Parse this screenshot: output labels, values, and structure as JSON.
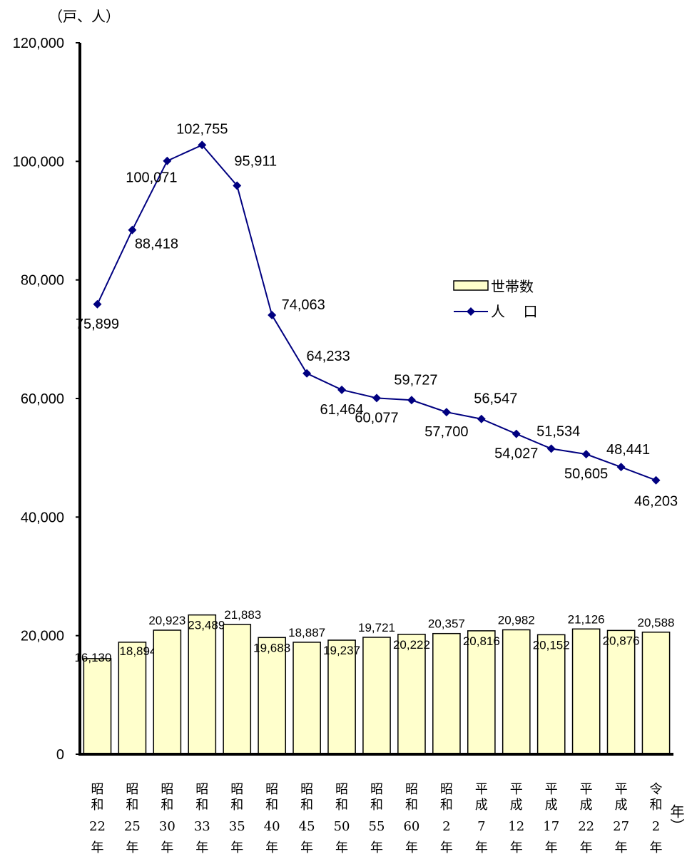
{
  "chart_data": {
    "type": "bar",
    "yunit": "（戸、人）",
    "xunit": "年）",
    "ylim": [
      0,
      120000
    ],
    "yticks": [
      "0",
      "20,000",
      "40,000",
      "60,000",
      "80,000",
      "100,000",
      "120,000"
    ],
    "ytick_values": [
      0,
      20000,
      40000,
      60000,
      80000,
      100000,
      120000
    ],
    "categories": [
      {
        "era": "昭和",
        "year": "22年"
      },
      {
        "era": "昭和",
        "year": "25年"
      },
      {
        "era": "昭和",
        "year": "30年"
      },
      {
        "era": "昭和",
        "year": "33年"
      },
      {
        "era": "昭和",
        "year": "35年"
      },
      {
        "era": "昭和",
        "year": "40年"
      },
      {
        "era": "昭和",
        "year": "45年"
      },
      {
        "era": "昭和",
        "year": "50年"
      },
      {
        "era": "昭和",
        "year": "55年"
      },
      {
        "era": "昭和",
        "year": "60年"
      },
      {
        "era": "昭和",
        "year": "2年"
      },
      {
        "era": "平成",
        "year": "7年"
      },
      {
        "era": "平成",
        "year": "12年"
      },
      {
        "era": "平成",
        "year": "17年"
      },
      {
        "era": "平成",
        "year": "22年"
      },
      {
        "era": "平成",
        "year": "27年"
      },
      {
        "era": "令和",
        "year": "2年"
      }
    ],
    "series": [
      {
        "name": "世帯数",
        "type": "bar",
        "color": "#FFFFCC",
        "values": [
          16130,
          18894,
          20923,
          23489,
          21883,
          19683,
          18887,
          19237,
          19721,
          20222,
          20357,
          20816,
          20982,
          20152,
          21126,
          20876,
          20588
        ],
        "labels": [
          "16,130",
          "18,894",
          "20,923",
          "23,489",
          "21,883",
          "19,683",
          "18,887",
          "19,237",
          "19,721",
          "20,222",
          "20,357",
          "20,816",
          "20,982",
          "20,152",
          "21,126",
          "20,876",
          "20,588"
        ]
      },
      {
        "name": "人　 口",
        "type": "line",
        "color": "#000080",
        "values": [
          75899,
          88418,
          100071,
          102755,
          95911,
          74063,
          64233,
          61464,
          60077,
          59727,
          57700,
          56547,
          54027,
          51534,
          50605,
          48441,
          46203
        ],
        "labels": [
          "75,899",
          "88,418",
          "100,071",
          "102,755",
          "95,911",
          "74,063",
          "64,233",
          "61,464",
          "60,077",
          "59,727",
          "57,700",
          "56,547",
          "54,027",
          "51,534",
          "50,605",
          "48,441",
          "46,203"
        ]
      }
    ],
    "legend_position": "right"
  }
}
